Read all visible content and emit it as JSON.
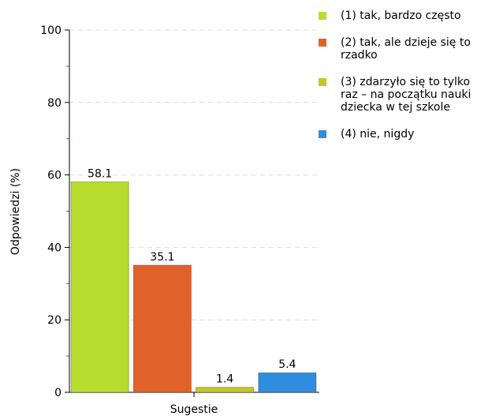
{
  "chart_data": {
    "type": "bar",
    "xlabel": "Sugestie",
    "ylabel": "Odpowiedzi (%)",
    "ylim": [
      0,
      100
    ],
    "yticks": [
      "0",
      "20",
      "40",
      "60",
      "80",
      "100"
    ],
    "grid": true,
    "legend_position": "right",
    "series": [
      {
        "name": "(1) tak, bardzo często",
        "value": 58.1,
        "label": "58.1",
        "color": "#b6dd2e"
      },
      {
        "name": "(2) tak, ale dzieje się to rzadko",
        "value": 35.1,
        "label": "35.1",
        "color": "#e0622a"
      },
      {
        "name": "(3) zdarzyło się to tylko raz – na początku nauki dziecka w tej szkole",
        "value": 1.4,
        "label": "1.4",
        "color": "#c6c42c"
      },
      {
        "name": "(4) nie, nigdy",
        "value": 5.4,
        "label": "5.4",
        "color": "#2f8de0"
      }
    ]
  }
}
